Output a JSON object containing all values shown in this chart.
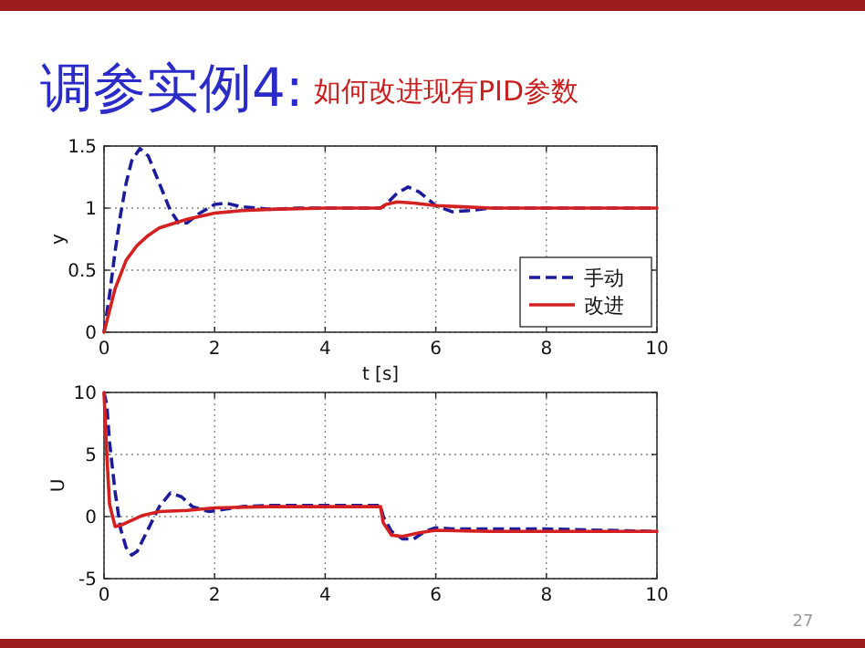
{
  "chart_data": [
    {
      "type": "line",
      "title": "调参实例4:",
      "subtitle": "如何改进现有PID参数",
      "xlabel": "t [s]",
      "ylabel": "y",
      "xlim": [
        0,
        10
      ],
      "ylim": [
        0,
        1.5
      ],
      "xticks": [
        0,
        2,
        4,
        6,
        8,
        10
      ],
      "yticks": [
        0,
        0.5,
        1,
        1.5
      ],
      "grid": true,
      "legend": "bottom right",
      "series": [
        {
          "name": "手动",
          "color": "#1c1c9a",
          "line_style": "dashed",
          "x": [
            0,
            0.1,
            0.2,
            0.3,
            0.4,
            0.5,
            0.65,
            0.8,
            1.0,
            1.2,
            1.35,
            1.5,
            1.7,
            2.0,
            2.2,
            2.5,
            3,
            3.5,
            5,
            5.1,
            5.3,
            5.5,
            5.7,
            6.0,
            6.3,
            6.6,
            7,
            10
          ],
          "values": [
            0,
            0.3,
            0.65,
            0.95,
            1.2,
            1.38,
            1.48,
            1.42,
            1.2,
            0.98,
            0.88,
            0.88,
            0.95,
            1.03,
            1.04,
            1.01,
            0.99,
            1.0,
            1.0,
            1.03,
            1.12,
            1.17,
            1.13,
            1.02,
            0.97,
            0.98,
            1.0,
            1.0
          ]
        },
        {
          "name": "改进",
          "color": "#d42020",
          "line_style": "solid",
          "x": [
            0,
            0.2,
            0.4,
            0.6,
            0.8,
            1.0,
            1.5,
            2.0,
            2.5,
            3,
            4,
            5,
            5.1,
            5.3,
            5.6,
            6,
            6.5,
            7,
            10
          ],
          "values": [
            0,
            0.35,
            0.58,
            0.7,
            0.78,
            0.84,
            0.91,
            0.96,
            0.98,
            0.99,
            1.0,
            1.0,
            1.03,
            1.05,
            1.04,
            1.02,
            1.01,
            1.0,
            1.0
          ]
        }
      ]
    },
    {
      "type": "line",
      "ylabel": "U",
      "xlim": [
        0,
        10
      ],
      "ylim": [
        -5,
        10
      ],
      "xticks": [
        0,
        2,
        4,
        6,
        8,
        10
      ],
      "yticks": [
        -5,
        0,
        5,
        10
      ],
      "grid": true,
      "annotations": [
        "27"
      ],
      "series": [
        {
          "color": "#1c1c9a",
          "line_style": "dashed",
          "x": [
            0,
            0.05,
            0.1,
            0.2,
            0.3,
            0.4,
            0.5,
            0.6,
            0.8,
            1.0,
            1.2,
            1.4,
            1.6,
            1.9,
            2.2,
            2.5,
            3,
            5,
            5.05,
            5.2,
            5.4,
            5.6,
            5.8,
            6,
            6.3,
            7,
            8,
            10
          ],
          "values": [
            10,
            9,
            6,
            2,
            -1,
            -2.5,
            -3.1,
            -2.8,
            -1,
            0.8,
            1.9,
            1.6,
            0.8,
            0.4,
            0.6,
            0.8,
            0.9,
            0.9,
            0,
            -1.2,
            -1.8,
            -1.8,
            -1.2,
            -0.9,
            -1.0,
            -1.0,
            -1.0,
            -1.2
          ]
        },
        {
          "color": "#d42020",
          "line_style": "solid",
          "x": [
            0,
            0.05,
            0.1,
            0.2,
            0.3,
            0.5,
            0.7,
            1,
            1.5,
            2,
            3,
            5,
            5.05,
            5.2,
            5.4,
            5.7,
            6,
            7,
            10
          ],
          "values": [
            10,
            5,
            1,
            -0.8,
            -0.7,
            -0.3,
            0.1,
            0.4,
            0.5,
            0.7,
            0.8,
            0.8,
            -0.5,
            -1.5,
            -1.6,
            -1.3,
            -1.1,
            -1.2,
            -1.2
          ]
        }
      ]
    }
  ]
}
